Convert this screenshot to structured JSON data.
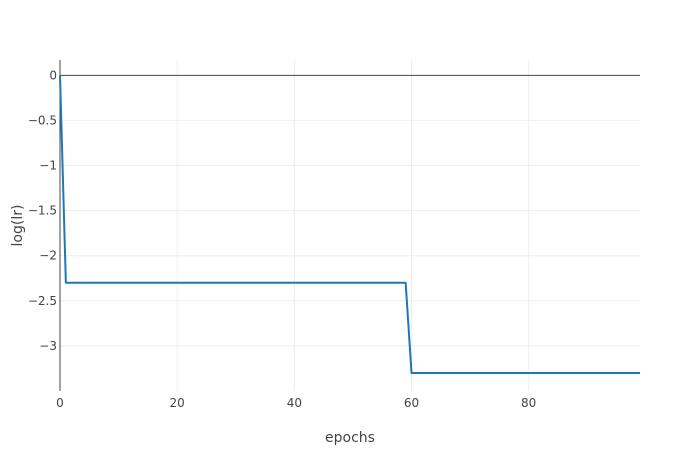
{
  "chart_data": {
    "type": "line",
    "title": "",
    "xlabel": "epochs",
    "ylabel": "log(lr)",
    "xlim": [
      0,
      99
    ],
    "ylim": [
      -3.5,
      0.17
    ],
    "x_ticks": [
      0,
      20,
      40,
      60,
      80
    ],
    "y_ticks": [
      0,
      -0.5,
      -1,
      -1.5,
      -2,
      -2.5,
      -3
    ],
    "y_tick_labels": [
      "0",
      "−0.5",
      "−1",
      "−1.5",
      "−2",
      "−2.5",
      "−3"
    ],
    "grid": true,
    "legend": false,
    "series": [
      {
        "color": "#1f77b4",
        "x": [
          0,
          1,
          59,
          60,
          99
        ],
        "y": [
          0,
          -2.3,
          -2.3,
          -3.3,
          -3.3
        ]
      }
    ]
  }
}
